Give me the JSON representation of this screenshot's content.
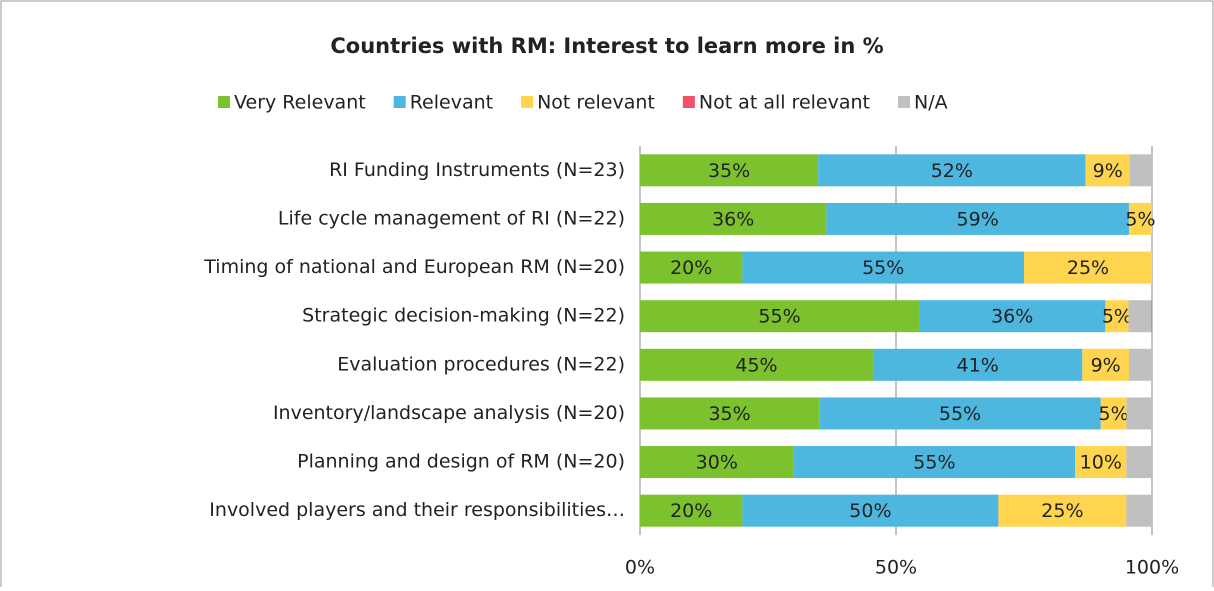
{
  "chart_data": {
    "type": "stacked_bar_horizontal",
    "title": "Countries with RM: Interest to learn more in %",
    "categories": [
      "RI Funding Instruments (N=23)",
      "Life cycle management of RI (N=22)",
      "Timing of national and European RM (N=20)",
      "Strategic decision-making (N=22)",
      "Evaluation procedures (N=22)",
      "Inventory/landscape analysis (N=20)",
      "Planning and design of RM (N=20)",
      "Involved players and their responsibilities…"
    ],
    "series": [
      {
        "name": "Very Relevant",
        "color": "#7cc22e",
        "values": [
          34.8,
          36.4,
          20,
          54.5,
          45.5,
          35,
          30,
          20
        ],
        "value_labels": [
          "35%",
          "36%",
          "20%",
          "55%",
          "45%",
          "35%",
          "30%",
          "20%"
        ]
      },
      {
        "name": "Relevant",
        "color": "#4db7e0",
        "values": [
          52.2,
          59.1,
          55,
          36.4,
          40.9,
          55,
          55,
          50
        ],
        "value_labels": [
          "52%",
          "59%",
          "55%",
          "36%",
          "41%",
          "55%",
          "55%",
          "50%"
        ]
      },
      {
        "name": "Not relevant",
        "color": "#ffd550",
        "values": [
          8.7,
          4.5,
          25,
          4.5,
          9.1,
          5,
          10,
          25
        ],
        "value_labels": [
          "9%",
          "5%",
          "25%",
          "5%",
          "9%",
          "5%",
          "10%",
          "25%"
        ]
      },
      {
        "name": "Not at all relevant",
        "color": "#f05068",
        "values": [
          0,
          0,
          0,
          0,
          0,
          0,
          0,
          0
        ]
      },
      {
        "name": "N/A",
        "color": "#c0c0c0",
        "values": [
          4.3,
          0,
          0,
          4.5,
          4.5,
          5,
          5,
          5
        ]
      }
    ],
    "xlim": [
      0,
      100
    ],
    "xticks": [
      {
        "value": 0,
        "label": "0%"
      },
      {
        "value": 50,
        "label": "50%"
      },
      {
        "value": 100,
        "label": "100%"
      }
    ],
    "grid": true
  }
}
